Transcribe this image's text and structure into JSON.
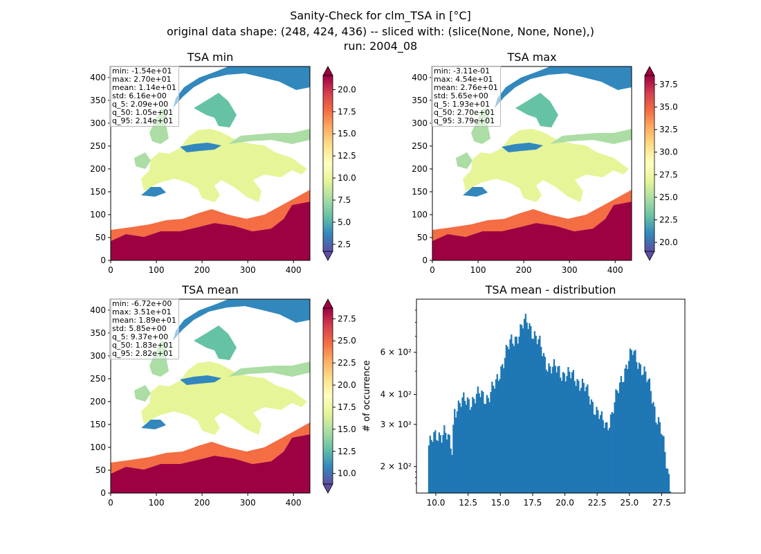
{
  "suptitle": {
    "line1": "Sanity-Check for clm_TSA in [°C]",
    "line2": "original data shape: (248, 424, 436) -- sliced with: (slice(None, None, None),)",
    "line3": "run: 2004_08"
  },
  "colors": {
    "hist_bar": "#1f77b4",
    "colormap": "Spectral_r",
    "colormap_stops": [
      "#5e4fa2",
      "#3288bd",
      "#66c2a5",
      "#abdda4",
      "#e6f598",
      "#ffffbf",
      "#fee08b",
      "#fdae61",
      "#f46d43",
      "#d53e4f",
      "#9e0142"
    ]
  },
  "map_axes": {
    "x_ticks": [
      0,
      100,
      200,
      300,
      400
    ],
    "y_ticks": [
      0,
      50,
      100,
      150,
      200,
      250,
      300,
      350,
      400
    ],
    "xlim": [
      0,
      436
    ],
    "ylim": [
      0,
      424
    ]
  },
  "panels": [
    {
      "title": "TSA min",
      "stats": [
        "min: -1.54e+01",
        "max: 2.70e+01",
        "mean: 1.14e+01",
        "std: 6.16e+00",
        "q_5: 2.09e+00",
        "q_50: 1.05e+01",
        "q_95: 2.14e+01"
      ],
      "colorbar": {
        "ticks": [
          "2.5",
          "5.0",
          "7.5",
          "10.0",
          "12.5",
          "15.0",
          "17.5",
          "20.0"
        ],
        "tick_values": [
          2.5,
          5.0,
          7.5,
          10.0,
          12.5,
          15.0,
          17.5,
          20.0
        ],
        "range": [
          1.7,
          21.6
        ]
      }
    },
    {
      "title": "TSA max",
      "stats": [
        "min: -3.11e-01",
        "max: 4.54e+01",
        "mean: 2.76e+01",
        "std: 5.65e+00",
        "q_5: 1.93e+01",
        "q_50: 2.70e+01",
        "q_95: 3.79e+01"
      ],
      "colorbar": {
        "ticks": [
          "20.0",
          "22.5",
          "25.0",
          "27.5",
          "30.0",
          "32.5",
          "35.0",
          "37.5"
        ],
        "tick_values": [
          20.0,
          22.5,
          25.0,
          27.5,
          30.0,
          32.5,
          35.0,
          37.5
        ],
        "range": [
          19.0,
          38.5
        ]
      }
    },
    {
      "title": "TSA mean",
      "stats": [
        "min: -6.72e+00",
        "max: 3.51e+01",
        "mean: 1.89e+01",
        "std: 5.85e+00",
        "q_5: 9.37e+00",
        "q_50: 1.83e+01",
        "q_95: 2.82e+01"
      ],
      "colorbar": {
        "ticks": [
          "10.0",
          "12.5",
          "15.0",
          "17.5",
          "20.0",
          "22.5",
          "25.0",
          "27.5"
        ],
        "tick_values": [
          10.0,
          12.5,
          15.0,
          17.5,
          20.0,
          22.5,
          25.0,
          27.5
        ],
        "range": [
          8.8,
          28.7
        ]
      }
    }
  ],
  "chart_data": {
    "type": "bar",
    "title": "TSA mean - distribution",
    "xlabel": "",
    "ylabel": "# of occurrence",
    "yscale": "log",
    "xlim": [
      8.5,
      29.3
    ],
    "ylim": [
      155,
      1000
    ],
    "x_ticks": [
      "10.0",
      "12.5",
      "15.0",
      "17.5",
      "20.0",
      "22.5",
      "25.0",
      "27.5"
    ],
    "x_tick_values": [
      10.0,
      12.5,
      15.0,
      17.5,
      20.0,
      22.5,
      25.0,
      27.5
    ],
    "y_ticks": [
      "2 × 10²",
      "3 × 10²",
      "4 × 10²",
      "6 × 10²"
    ],
    "y_tick_values": [
      200,
      300,
      400,
      600
    ],
    "x": [
      9.4,
      10.0,
      10.6,
      11.2,
      11.4,
      11.8,
      12.2,
      12.8,
      13.4,
      14.0,
      14.6,
      15.0,
      15.4,
      15.8,
      16.2,
      16.6,
      16.8,
      17.0,
      17.2,
      17.4,
      17.6,
      18.0,
      18.4,
      18.8,
      19.2,
      19.6,
      20.2,
      20.8,
      21.4,
      22.0,
      22.4,
      22.8,
      23.2,
      23.6,
      24.0,
      24.4,
      24.8,
      25.2,
      25.6,
      26.0,
      26.6,
      27.0,
      27.4,
      27.8,
      28.1
    ],
    "values": [
      245,
      270,
      280,
      235,
      350,
      365,
      375,
      380,
      400,
      390,
      440,
      520,
      600,
      660,
      700,
      760,
      790,
      800,
      780,
      750,
      710,
      640,
      560,
      520,
      510,
      500,
      480,
      470,
      430,
      380,
      340,
      310,
      300,
      330,
      400,
      480,
      540,
      600,
      560,
      500,
      420,
      330,
      280,
      210,
      170
    ]
  }
}
